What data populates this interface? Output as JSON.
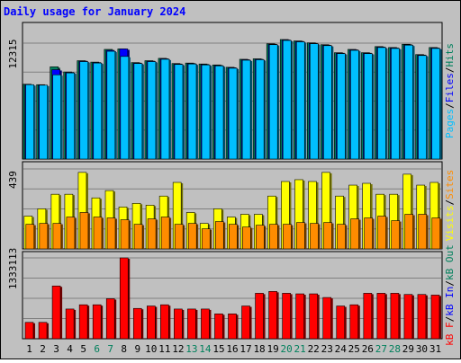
{
  "chart_data": {
    "type": "bar",
    "title": "Daily usage for January 2024",
    "categories": [
      "1",
      "2",
      "3",
      "4",
      "5",
      "6",
      "7",
      "8",
      "9",
      "10",
      "11",
      "12",
      "13",
      "14",
      "15",
      "16",
      "17",
      "18",
      "19",
      "20",
      "21",
      "22",
      "23",
      "24",
      "25",
      "26",
      "27",
      "28",
      "29",
      "30",
      "31"
    ],
    "weekend_days": [
      "6",
      "7",
      "13",
      "14",
      "20",
      "21",
      "27",
      "28"
    ],
    "panels": [
      {
        "name": "hits-files-pages",
        "max_label": "12315",
        "ymax": 12315,
        "side_label": [
          "Pages",
          "Files",
          "Hits"
        ],
        "side_separator": "/",
        "series": [
          {
            "name": "Hits",
            "color": "#00805c",
            "values": [
              7950,
              7900,
              9800,
              9250,
              10450,
              10300,
              11650,
              11700,
              10250,
              10450,
              10700,
              10150,
              10200,
              10100,
              10000,
              9750,
              10600,
              10650,
              12250,
              12700,
              12550,
              12350,
              12150,
              11300,
              11650,
              11300,
              11950,
              11850,
              12200,
              11100,
              11850
            ]
          },
          {
            "name": "Files",
            "color": "#0000ff",
            "values": [
              7900,
              7850,
              9500,
              9200,
              10400,
              10250,
              11550,
              11700,
              10200,
              10400,
              10650,
              10100,
              10150,
              10050,
              9950,
              9700,
              10550,
              10600,
              12200,
              12650,
              12500,
              12300,
              12100,
              11250,
              11600,
              11250,
              11900,
              11800,
              12150,
              11050,
              11800
            ]
          },
          {
            "name": "Pages",
            "color": "#00bfff",
            "values": [
              7900,
              7850,
              8950,
              9150,
              10350,
              10200,
              11450,
              10900,
              10150,
              10350,
              10600,
              10050,
              10100,
              10000,
              9900,
              9650,
              10500,
              10550,
              12150,
              12600,
              12450,
              12250,
              12050,
              11200,
              11550,
              11200,
              11850,
              11750,
              12100,
              11000,
              11750
            ]
          }
        ]
      },
      {
        "name": "visits-sites",
        "max_label": "439",
        "ymax": 439,
        "side_label": [
          "Visits",
          "Sites"
        ],
        "side_separator": "/",
        "series": [
          {
            "name": "Visits",
            "color": "#ffff00",
            "values": [
              180,
              220,
              300,
              300,
              420,
              280,
              320,
              230,
              250,
              240,
              290,
              365,
              200,
              140,
              220,
              175,
              190,
              190,
              290,
              370,
              380,
              370,
              420,
              290,
              350,
              360,
              300,
              300,
              410,
              350,
              365
            ]
          },
          {
            "name": "Sites",
            "color": "#ff8c00",
            "values": [
              135,
              140,
              140,
              175,
              200,
              175,
              170,
              160,
              135,
              165,
              175,
              135,
              140,
              110,
              150,
              135,
              120,
              130,
              135,
              135,
              145,
              140,
              145,
              135,
              165,
              170,
              180,
              155,
              190,
              190,
              170
            ]
          }
        ]
      },
      {
        "name": "kbf-kbin-kbout",
        "max_label": "1333113",
        "ymax": 1333113,
        "side_label": [
          "kB F",
          "kB In",
          "kB Out"
        ],
        "side_separator": "/",
        "series": [
          {
            "name": "kB F",
            "color": "#ff0000",
            "values": [
              270000,
              270000,
              870000,
              490000,
              560000,
              560000,
              660000,
              1333113,
              500000,
              540000,
              560000,
              490000,
              490000,
              490000,
              410000,
              410000,
              540000,
              750000,
              780000,
              750000,
              740000,
              740000,
              680000,
              540000,
              560000,
              750000,
              750000,
              750000,
              730000,
              730000,
              720000
            ]
          }
        ]
      }
    ]
  }
}
